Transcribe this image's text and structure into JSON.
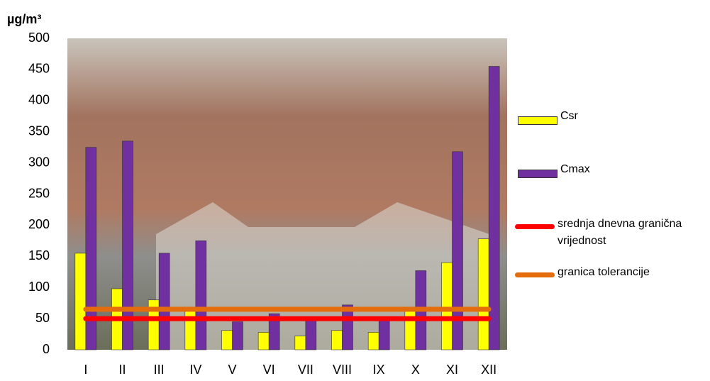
{
  "chart_data": {
    "type": "bar",
    "y_label": "µg/m³",
    "categories": [
      "I",
      "II",
      "III",
      "IV",
      "V",
      "VI",
      "VII",
      "VIII",
      "IX",
      "X",
      "XI",
      "XII"
    ],
    "series": [
      {
        "name": "Csr",
        "type": "bar",
        "color": "#ffff00",
        "values": [
          155,
          98,
          80,
          62,
          31,
          28,
          22,
          31,
          28,
          62,
          140,
          178
        ]
      },
      {
        "name": "Cmax",
        "type": "bar",
        "color": "#7030a0",
        "values": [
          325,
          335,
          155,
          175,
          45,
          58,
          48,
          72,
          47,
          127,
          318,
          455
        ]
      },
      {
        "name": "srednja dnevna granična vrijednost",
        "type": "line",
        "color": "#ff0000",
        "values": [
          50,
          50,
          50,
          50,
          50,
          50,
          50,
          50,
          50,
          50,
          50,
          50
        ]
      },
      {
        "name": "granica tolerancije",
        "type": "line",
        "color": "#e46c0a",
        "values": [
          65,
          65,
          65,
          65,
          65,
          65,
          65,
          65,
          65,
          65,
          65,
          65
        ]
      }
    ],
    "ylim": [
      0,
      500
    ],
    "yticks": [
      0,
      50,
      100,
      150,
      200,
      250,
      300,
      350,
      400,
      450,
      500
    ]
  }
}
